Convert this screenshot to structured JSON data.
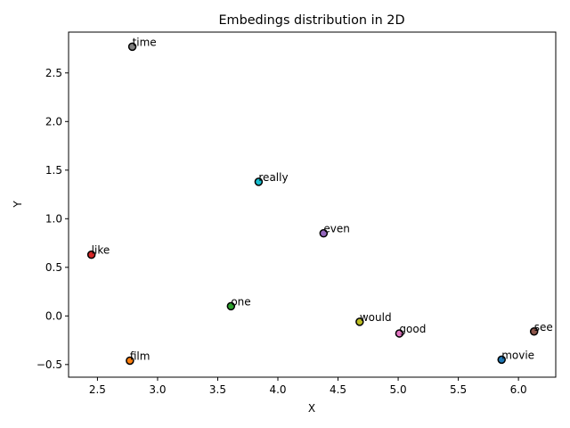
{
  "chart_data": {
    "type": "scatter",
    "title": "Embedings distribution in 2D",
    "xlabel": "X",
    "ylabel": "Y",
    "xlim": [
      2.26,
      6.31
    ],
    "ylim": [
      -0.63,
      2.92
    ],
    "xticks": [
      2.5,
      3.0,
      3.5,
      4.0,
      4.5,
      5.0,
      5.5,
      6.0
    ],
    "xtick_labels": [
      "2.5",
      "3.0",
      "3.5",
      "4.0",
      "4.5",
      "5.0",
      "5.5",
      "6.0"
    ],
    "yticks": [
      -0.5,
      0.0,
      0.5,
      1.0,
      1.5,
      2.0,
      2.5
    ],
    "ytick_labels": [
      "−0.5",
      "0.0",
      "0.5",
      "1.0",
      "1.5",
      "2.0",
      "2.5"
    ],
    "grid": false,
    "points": [
      {
        "label": "movie",
        "x": 5.86,
        "y": -0.45,
        "color": "#1f77b4"
      },
      {
        "label": "film",
        "x": 2.77,
        "y": -0.46,
        "color": "#ff7f0e"
      },
      {
        "label": "one",
        "x": 3.61,
        "y": 0.1,
        "color": "#2ca02c"
      },
      {
        "label": "like",
        "x": 2.45,
        "y": 0.63,
        "color": "#d62728"
      },
      {
        "label": "even",
        "x": 4.38,
        "y": 0.85,
        "color": "#9467bd"
      },
      {
        "label": "see",
        "x": 6.13,
        "y": -0.16,
        "color": "#8c564b"
      },
      {
        "label": "good",
        "x": 5.01,
        "y": -0.18,
        "color": "#e377c2"
      },
      {
        "label": "time",
        "x": 2.79,
        "y": 2.77,
        "color": "#7f7f7f"
      },
      {
        "label": "would",
        "x": 4.68,
        "y": -0.06,
        "color": "#bcbd22"
      },
      {
        "label": "really",
        "x": 3.84,
        "y": 1.38,
        "color": "#17becf"
      }
    ]
  }
}
